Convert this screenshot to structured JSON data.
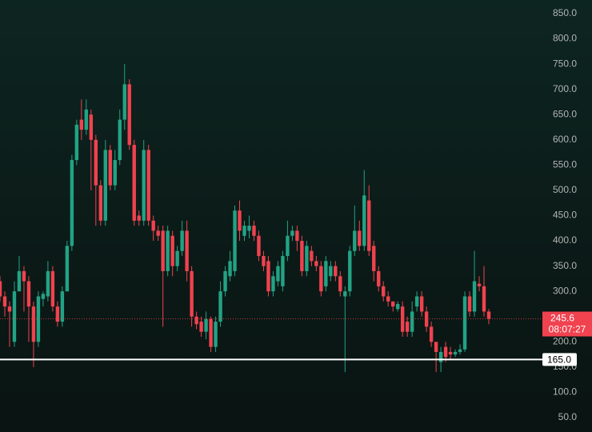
{
  "chart_data": {
    "type": "candlestick",
    "up_color": "#22a385",
    "down_color": "#f0424f",
    "ylim": [
      50,
      850
    ],
    "yticks": [
      {
        "value": 50,
        "label": "50.0"
      },
      {
        "value": 100,
        "label": "100.0"
      },
      {
        "value": 150,
        "label": "150.0"
      },
      {
        "value": 200,
        "label": "200.0"
      },
      {
        "value": 250,
        "label": "250.0"
      },
      {
        "value": 300,
        "label": "300.0"
      },
      {
        "value": 350,
        "label": "350.0"
      },
      {
        "value": 400,
        "label": "400.0"
      },
      {
        "value": 450,
        "label": "450.0"
      },
      {
        "value": 500,
        "label": "500.0"
      },
      {
        "value": 550,
        "label": "550.0"
      },
      {
        "value": 600,
        "label": "600.0"
      },
      {
        "value": 650,
        "label": "650.0"
      },
      {
        "value": 700,
        "label": "700.0"
      },
      {
        "value": 750,
        "label": "750.0"
      },
      {
        "value": 800,
        "label": "800.0"
      },
      {
        "value": 850,
        "label": "850.0"
      }
    ],
    "grid": false,
    "open": [
      320,
      290,
      270,
      200,
      300,
      340,
      320,
      270,
      200,
      285,
      290,
      340,
      270,
      240,
      300,
      390,
      560,
      640,
      620,
      650,
      600,
      510,
      440,
      580,
      510,
      560,
      640,
      710,
      590,
      450,
      440,
      580,
      440,
      420,
      420,
      340,
      410,
      350,
      380,
      420,
      340,
      250,
      240,
      220,
      245,
      190,
      240,
      300,
      330,
      340,
      460,
      410,
      420,
      430,
      410,
      370,
      360,
      300,
      320,
      310,
      370,
      410,
      420,
      400,
      340,
      380,
      360,
      350,
      310,
      330,
      350,
      330,
      290,
      300,
      380,
      420,
      390,
      480,
      390,
      340,
      310,
      290,
      280,
      265,
      270,
      240,
      220,
      270,
      290,
      260,
      230,
      200,
      160,
      190,
      180,
      175,
      180,
      185,
      290,
      260,
      315,
      310,
      260
    ],
    "high": [
      330,
      300,
      280,
      320,
      370,
      350,
      330,
      280,
      300,
      300,
      360,
      350,
      280,
      310,
      400,
      570,
      640,
      680,
      680,
      660,
      610,
      520,
      600,
      590,
      580,
      660,
      750,
      720,
      600,
      460,
      600,
      590,
      450,
      430,
      430,
      430,
      420,
      390,
      440,
      440,
      350,
      260,
      250,
      260,
      250,
      250,
      320,
      350,
      380,
      470,
      480,
      440,
      450,
      440,
      420,
      380,
      370,
      340,
      360,
      380,
      440,
      430,
      430,
      410,
      400,
      390,
      370,
      360,
      370,
      360,
      360,
      340,
      310,
      390,
      470,
      440,
      540,
      510,
      400,
      350,
      320,
      300,
      280,
      280,
      280,
      250,
      280,
      300,
      300,
      270,
      240,
      200,
      190,
      200,
      190,
      185,
      195,
      300,
      300,
      380,
      330,
      350,
      265
    ],
    "low": [
      280,
      250,
      190,
      190,
      300,
      260,
      200,
      150,
      190,
      270,
      280,
      260,
      230,
      230,
      300,
      380,
      550,
      600,
      610,
      500,
      430,
      430,
      430,
      500,
      500,
      550,
      620,
      580,
      430,
      430,
      430,
      430,
      400,
      400,
      230,
      330,
      330,
      340,
      370,
      320,
      230,
      225,
      210,
      205,
      180,
      180,
      230,
      290,
      320,
      330,
      400,
      400,
      405,
      400,
      360,
      340,
      290,
      290,
      310,
      300,
      360,
      400,
      380,
      330,
      330,
      350,
      340,
      290,
      300,
      320,
      320,
      290,
      140,
      290,
      370,
      380,
      380,
      370,
      320,
      300,
      280,
      270,
      260,
      260,
      210,
      210,
      210,
      260,
      250,
      220,
      190,
      140,
      140,
      160,
      165,
      170,
      175,
      180,
      250,
      250,
      300,
      250,
      235
    ],
    "close": [
      290,
      270,
      260,
      300,
      340,
      320,
      270,
      200,
      290,
      295,
      340,
      270,
      240,
      300,
      390,
      560,
      630,
      620,
      660,
      600,
      510,
      440,
      580,
      510,
      560,
      640,
      710,
      590,
      440,
      440,
      580,
      440,
      420,
      410,
      340,
      420,
      350,
      380,
      420,
      340,
      250,
      235,
      220,
      245,
      190,
      240,
      300,
      340,
      360,
      460,
      420,
      430,
      430,
      410,
      370,
      350,
      300,
      330,
      350,
      370,
      410,
      420,
      400,
      340,
      390,
      360,
      350,
      300,
      360,
      350,
      330,
      300,
      300,
      380,
      420,
      390,
      490,
      380,
      340,
      310,
      290,
      280,
      270,
      275,
      220,
      220,
      260,
      290,
      260,
      230,
      200,
      180,
      180,
      170,
      175,
      180,
      185,
      290,
      260,
      320,
      310,
      260,
      245.6
    ],
    "price_line": {
      "value": 245.6,
      "countdown": "08:07:27",
      "color": "#f0424f"
    },
    "horizontal_line": {
      "value": 165,
      "label": "165.0",
      "color": "#ffffff"
    }
  }
}
